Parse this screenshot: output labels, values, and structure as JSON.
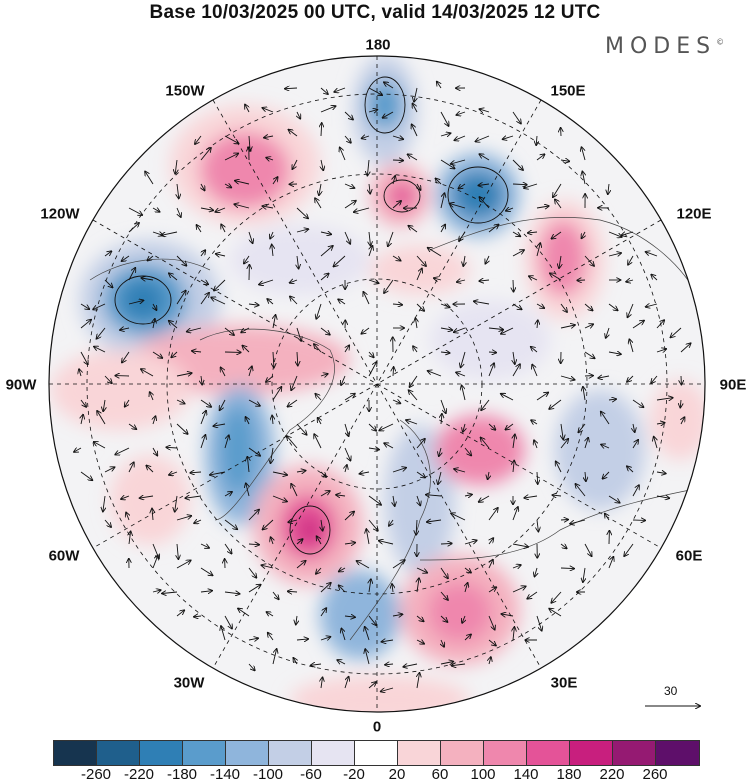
{
  "title": "Base 10/03/2025 00 UTC, valid 14/03/2025 12 UTC",
  "brand": "MODES",
  "brand_mark": "©",
  "longitude_labels": {
    "lon_180": "180",
    "lon_150e": "150E",
    "lon_120e": "120E",
    "lon_90e": "90E",
    "lon_60e": "60E",
    "lon_30e": "30E",
    "lon_0": "0",
    "lon_30w": "30W",
    "lon_60w": "60W",
    "lon_90w": "90W",
    "lon_120w": "120W",
    "lon_150w": "150W"
  },
  "vector_scale_label": "30",
  "colorbar": {
    "colors": [
      "#16344f",
      "#1f5f8c",
      "#2f7fb5",
      "#5a9ccc",
      "#8fb5dc",
      "#c3cfe6",
      "#e6e4f2",
      "#ffffff",
      "#f9d5d8",
      "#f4b1bf",
      "#ef87ad",
      "#e45398",
      "#c81f7e",
      "#951a72",
      "#5e0f6a"
    ],
    "ticks": [
      "-260",
      "-220",
      "-180",
      "-140",
      "-100",
      "-60",
      "-20",
      "20",
      "60",
      "100",
      "140",
      "180",
      "220",
      "260"
    ]
  }
}
